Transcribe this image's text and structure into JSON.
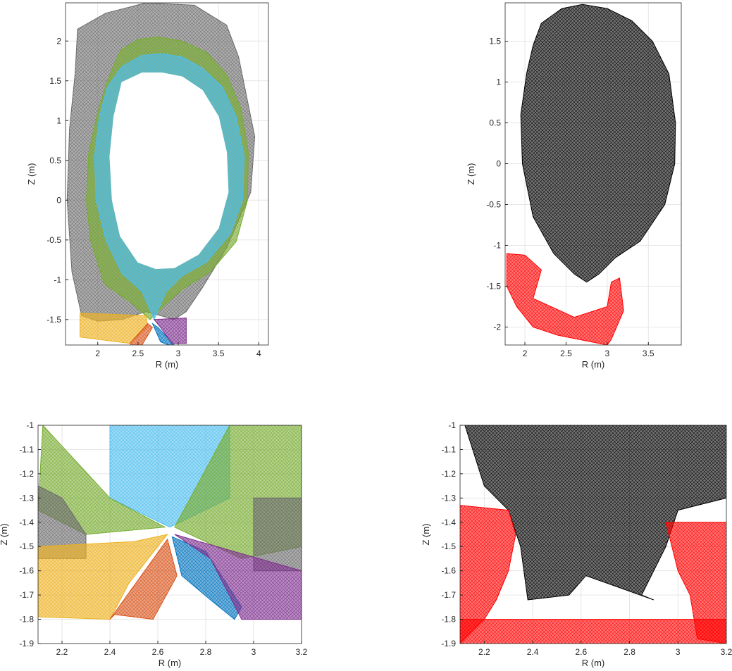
{
  "chart_data": [
    {
      "type": "mesh",
      "panel": "top-left",
      "xlabel": "R (m)",
      "ylabel": "Z (m)",
      "xlim": [
        1.6,
        4.12
      ],
      "ylim": [
        -1.82,
        2.48
      ],
      "xticks": [
        2,
        2.5,
        3,
        3.5,
        4
      ],
      "yticks": [
        -1.5,
        -1,
        -0.5,
        0,
        0.5,
        1,
        1.5,
        2
      ],
      "grid": true,
      "series": [
        {
          "color": "#6b6b6b",
          "x": [
            1.75,
            2.1,
            2.6,
            3.2,
            3.6,
            3.75,
            3.85,
            3.95,
            3.9,
            3.6,
            3.3,
            3.1,
            2.95,
            2.6,
            2.3,
            2.0,
            1.8,
            1.68,
            1.62,
            1.65,
            1.72
          ],
          "y": [
            2.15,
            2.35,
            2.48,
            2.45,
            2.2,
            1.8,
            1.3,
            0.8,
            0.1,
            -0.6,
            -1.1,
            -1.4,
            -1.5,
            -1.4,
            -1.5,
            -1.52,
            -1.45,
            -0.9,
            0.0,
            0.9,
            1.6
          ]
        },
        {
          "color": "#77ac30",
          "x": [
            2.28,
            2.5,
            2.75,
            3.05,
            3.35,
            3.6,
            3.78,
            3.87,
            3.86,
            3.72,
            3.4,
            3.05,
            2.85,
            2.65,
            2.43,
            2.08,
            1.91,
            1.86,
            1.89,
            2.0,
            2.12
          ],
          "y": [
            1.88,
            2.02,
            2.05,
            2.0,
            1.86,
            1.58,
            1.15,
            0.6,
            0.0,
            -0.52,
            -0.9,
            -1.12,
            -1.3,
            -1.5,
            -1.3,
            -1.05,
            -0.5,
            0.0,
            0.6,
            1.1,
            1.5
          ]
        },
        {
          "color": "#4dbeee",
          "x": [
            2.3,
            2.55,
            2.8,
            3.05,
            3.3,
            3.55,
            3.72,
            3.82,
            3.8,
            3.65,
            3.35,
            3.05,
            2.85,
            2.7,
            2.55,
            2.3,
            2.1,
            1.98,
            1.96,
            2.02,
            2.12
          ],
          "y": [
            1.68,
            1.82,
            1.84,
            1.8,
            1.66,
            1.42,
            1.05,
            0.55,
            0.0,
            -0.42,
            -0.78,
            -0.95,
            -1.15,
            -1.5,
            -1.15,
            -0.92,
            -0.5,
            0.0,
            0.55,
            1.05,
            1.42
          ]
        },
        {
          "color": "#ffffff",
          "x": [
            2.3,
            2.55,
            2.8,
            3.05,
            3.3,
            3.5,
            3.6,
            3.62,
            3.5,
            3.25,
            2.95,
            2.72,
            2.5,
            2.28,
            2.18,
            2.15,
            2.2
          ],
          "y": [
            1.48,
            1.6,
            1.6,
            1.55,
            1.38,
            1.05,
            0.6,
            0.1,
            -0.35,
            -0.68,
            -0.85,
            -0.86,
            -0.78,
            -0.45,
            0.0,
            0.55,
            1.05
          ]
        },
        {
          "color": "#edb120",
          "x": [
            1.78,
            2.6,
            2.62,
            2.4,
            1.78
          ],
          "y": [
            -1.42,
            -1.45,
            -1.58,
            -1.8,
            -1.72
          ]
        },
        {
          "color": "#d95319",
          "x": [
            2.4,
            2.62,
            2.68,
            2.55,
            2.42
          ],
          "y": [
            -1.8,
            -1.55,
            -1.6,
            -1.82,
            -1.82
          ]
        },
        {
          "color": "#0072bd",
          "x": [
            2.68,
            2.75,
            2.95,
            2.88,
            2.78
          ],
          "y": [
            -1.55,
            -1.6,
            -1.82,
            -1.82,
            -1.78
          ]
        },
        {
          "color": "#7e2f8e",
          "x": [
            2.7,
            3.1,
            3.1,
            2.92,
            2.78
          ],
          "y": [
            -1.5,
            -1.48,
            -1.8,
            -1.8,
            -1.6
          ]
        }
      ]
    },
    {
      "type": "mesh",
      "panel": "top-right",
      "xlabel": "R (m)",
      "ylabel": "Z (m)",
      "xlim": [
        1.76,
        3.9
      ],
      "ylim": [
        -2.22,
        1.97
      ],
      "xticks": [
        2,
        2.5,
        3,
        3.5
      ],
      "yticks": [
        -2,
        -1.5,
        -1,
        -0.5,
        0,
        0.5,
        1,
        1.5
      ],
      "grid": true,
      "series": [
        {
          "color": "#000000",
          "x": [
            2.2,
            2.45,
            2.7,
            3.0,
            3.3,
            3.55,
            3.75,
            3.83,
            3.82,
            3.7,
            3.4,
            3.1,
            2.9,
            2.75,
            2.6,
            2.35,
            2.1,
            1.97,
            1.95,
            2.02,
            2.1
          ],
          "y": [
            1.72,
            1.9,
            1.95,
            1.9,
            1.75,
            1.5,
            1.1,
            0.5,
            0.0,
            -0.5,
            -0.95,
            -1.15,
            -1.35,
            -1.45,
            -1.35,
            -1.1,
            -0.65,
            0.0,
            0.6,
            1.1,
            1.45
          ]
        },
        {
          "color": "#ff0000",
          "x": [
            1.78,
            2.0,
            2.2,
            2.1,
            2.6,
            3.0,
            3.05,
            3.15,
            3.2,
            3.05,
            3.0,
            2.8,
            2.4,
            2.1,
            1.9,
            1.78
          ],
          "y": [
            -1.1,
            -1.12,
            -1.3,
            -1.65,
            -1.88,
            -1.75,
            -1.45,
            -1.4,
            -1.8,
            -2.15,
            -2.22,
            -2.18,
            -2.1,
            -2.0,
            -1.75,
            -1.5
          ]
        }
      ]
    },
    {
      "type": "mesh",
      "panel": "bottom-left",
      "xlabel": "R (m)",
      "ylabel": "Z (m)",
      "xlim": [
        2.1,
        3.2
      ],
      "ylim": [
        -1.9,
        -1.0
      ],
      "xticks": [
        2.2,
        2.4,
        2.6,
        2.8,
        3,
        3.2
      ],
      "yticks": [
        -1.9,
        -1.8,
        -1.7,
        -1.6,
        -1.5,
        -1.4,
        -1.3,
        -1.2,
        -1.1,
        -1
      ],
      "grid": true,
      "series": [
        {
          "color": "#4dbeee",
          "x": [
            2.4,
            2.9,
            2.9,
            2.65,
            2.4
          ],
          "y": [
            -1.0,
            -1.0,
            -1.3,
            -1.42,
            -1.3
          ]
        },
        {
          "color": "#77ac30",
          "x": [
            2.12,
            2.4,
            2.63,
            2.3,
            2.1
          ],
          "y": [
            -1.0,
            -1.3,
            -1.42,
            -1.45,
            -1.35
          ]
        },
        {
          "color": "#77ac30",
          "x": [
            2.9,
            3.2,
            3.2,
            2.95,
            2.67
          ],
          "y": [
            -1.0,
            -1.0,
            -1.5,
            -1.55,
            -1.42
          ]
        },
        {
          "color": "#6b6b6b",
          "x": [
            2.1,
            2.2,
            2.3,
            2.3,
            2.1
          ],
          "y": [
            -1.25,
            -1.3,
            -1.45,
            -1.55,
            -1.55
          ]
        },
        {
          "color": "#6b6b6b",
          "x": [
            3.0,
            3.2,
            3.2,
            3.0
          ],
          "y": [
            -1.3,
            -1.3,
            -1.6,
            -1.6
          ]
        },
        {
          "color": "#edb120",
          "x": [
            2.1,
            2.5,
            2.64,
            2.48,
            2.4,
            2.1
          ],
          "y": [
            -1.5,
            -1.48,
            -1.45,
            -1.65,
            -1.8,
            -1.79
          ]
        },
        {
          "color": "#d95319",
          "x": [
            2.4,
            2.64,
            2.68,
            2.58,
            2.42
          ],
          "y": [
            -1.8,
            -1.47,
            -1.62,
            -1.8,
            -1.78
          ]
        },
        {
          "color": "#0072bd",
          "x": [
            2.66,
            2.8,
            2.95,
            2.92,
            2.82,
            2.7
          ],
          "y": [
            -1.46,
            -1.52,
            -1.75,
            -1.8,
            -1.72,
            -1.62
          ]
        },
        {
          "color": "#7e2f8e",
          "x": [
            2.67,
            3.2,
            3.2,
            2.95,
            2.82
          ],
          "y": [
            -1.45,
            -1.6,
            -1.8,
            -1.8,
            -1.55
          ]
        }
      ]
    },
    {
      "type": "mesh",
      "panel": "bottom-right",
      "xlabel": "R (m)",
      "ylabel": "Z (m)",
      "xlim": [
        2.1,
        3.2
      ],
      "ylim": [
        -1.9,
        -1.0
      ],
      "xticks": [
        2.2,
        2.4,
        2.6,
        2.8,
        3,
        3.2
      ],
      "yticks": [
        -1.9,
        -1.8,
        -1.7,
        -1.6,
        -1.5,
        -1.4,
        -1.3,
        -1.2,
        -1.1,
        -1
      ],
      "grid": true,
      "series": [
        {
          "color": "#000000",
          "x": [
            2.12,
            3.2,
            3.2,
            3.0,
            2.95,
            2.85,
            2.9,
            2.62,
            2.55,
            2.38,
            2.35,
            2.3,
            2.2
          ],
          "y": [
            -1.0,
            -1.0,
            -1.3,
            -1.35,
            -1.5,
            -1.7,
            -1.72,
            -1.62,
            -1.7,
            -1.72,
            -1.5,
            -1.35,
            -1.25
          ]
        },
        {
          "color": "#ff0000",
          "x": [
            2.1,
            2.3,
            2.33,
            2.3,
            2.25,
            2.2,
            2.1
          ],
          "y": [
            -1.33,
            -1.35,
            -1.45,
            -1.6,
            -1.72,
            -1.8,
            -1.9
          ]
        },
        {
          "color": "#ff0000",
          "x": [
            2.95,
            3.2,
            3.2,
            3.08,
            3.05,
            3.0
          ],
          "y": [
            -1.4,
            -1.4,
            -1.9,
            -1.88,
            -1.7,
            -1.6
          ]
        },
        {
          "color": "#ff0000",
          "x": [
            2.1,
            3.2,
            3.2,
            2.1
          ],
          "y": [
            -1.8,
            -1.8,
            -1.9,
            -1.9
          ]
        }
      ]
    }
  ]
}
